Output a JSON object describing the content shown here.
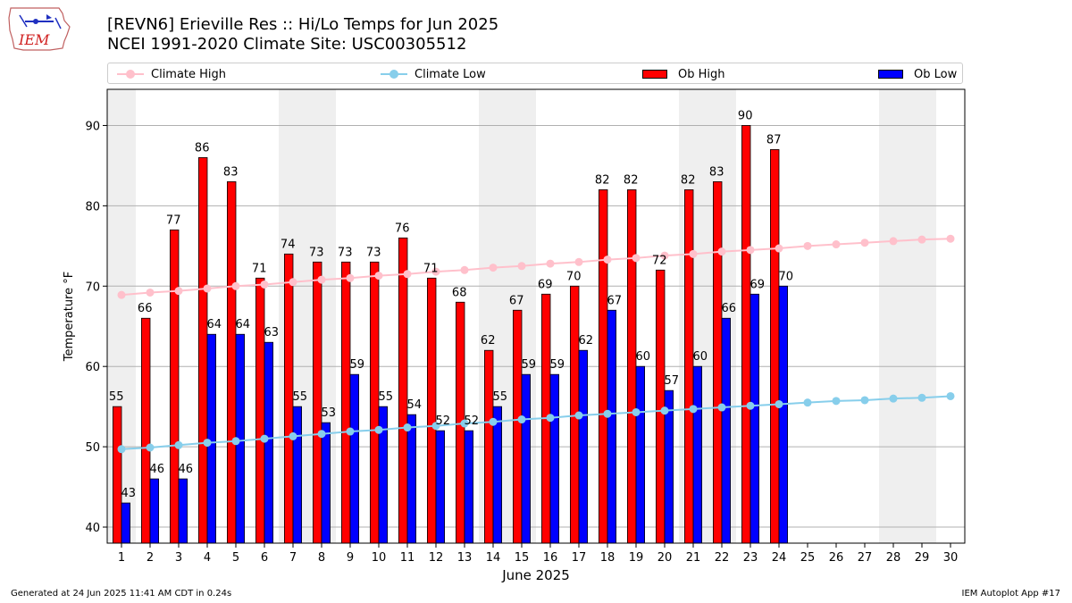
{
  "header": {
    "title_line1": "[REVN6] Erieville Res :: Hi/Lo Temps for Jun 2025",
    "title_line2": "NCEI 1991-2020 Climate Site: USC00305512",
    "logo_text": "IEM"
  },
  "legend": {
    "climate_high": "Climate High",
    "climate_low": "Climate Low",
    "ob_high": "Ob High",
    "ob_low": "Ob Low"
  },
  "footer": {
    "generated": "Generated at 24 Jun 2025 11:41 AM CDT in 0.24s",
    "app": "IEM Autoplot App #17"
  },
  "colors": {
    "ob_high": "#ff0000",
    "ob_low": "#0000ff",
    "climate_high": "#ffc0cb",
    "climate_low": "#87ceeb",
    "weekend_band": "#efefef",
    "grid": "#b0b0b0"
  },
  "chart_data": {
    "type": "bar",
    "xlabel": "June 2025",
    "ylabel": "Temperature °F",
    "ylim": [
      38,
      94.5
    ],
    "yticks": [
      40,
      50,
      60,
      70,
      80,
      90
    ],
    "grid": "horizontal",
    "legend_placement": "top",
    "days": [
      1,
      2,
      3,
      4,
      5,
      6,
      7,
      8,
      9,
      10,
      11,
      12,
      13,
      14,
      15,
      16,
      17,
      18,
      19,
      20,
      21,
      22,
      23,
      24,
      25,
      26,
      27,
      28,
      29,
      30
    ],
    "weekend_days": [
      1,
      7,
      8,
      14,
      15,
      21,
      22,
      28,
      29
    ],
    "series": [
      {
        "name": "Ob High",
        "kind": "bar",
        "values": [
          55,
          66,
          77,
          86,
          83,
          71,
          74,
          73,
          73,
          73,
          76,
          71,
          68,
          62,
          67,
          69,
          70,
          82,
          82,
          72,
          82,
          83,
          90,
          87
        ]
      },
      {
        "name": "Ob Low",
        "kind": "bar",
        "values": [
          43,
          46,
          46,
          64,
          64,
          63,
          55,
          53,
          59,
          55,
          54,
          52,
          52,
          55,
          59,
          59,
          62,
          67,
          60,
          57,
          60,
          66,
          69,
          70
        ]
      },
      {
        "name": "Climate High",
        "kind": "line",
        "values": [
          68.9,
          69.2,
          69.4,
          69.7,
          70.0,
          70.2,
          70.5,
          70.8,
          71.0,
          71.3,
          71.5,
          71.8,
          72.0,
          72.3,
          72.5,
          72.8,
          73.0,
          73.3,
          73.5,
          73.8,
          74.0,
          74.3,
          74.5,
          74.7,
          75.0,
          75.2,
          75.4,
          75.6,
          75.8,
          75.9
        ]
      },
      {
        "name": "Climate Low",
        "kind": "line",
        "values": [
          49.7,
          49.9,
          50.2,
          50.5,
          50.7,
          51.0,
          51.3,
          51.6,
          51.9,
          52.1,
          52.4,
          52.6,
          52.9,
          53.1,
          53.4,
          53.6,
          53.9,
          54.1,
          54.3,
          54.5,
          54.7,
          54.9,
          55.1,
          55.3,
          55.5,
          55.7,
          55.8,
          56.0,
          56.1,
          56.3
        ]
      }
    ]
  }
}
